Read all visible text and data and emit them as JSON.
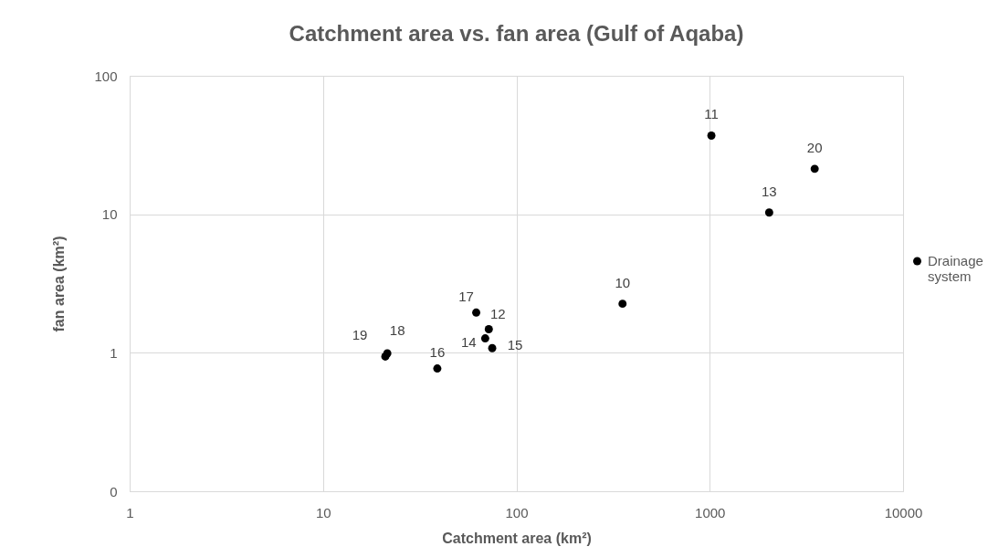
{
  "chart_data": {
    "type": "scatter",
    "title": "Catchment area vs. fan area (Gulf of Aqaba)",
    "xlabel": "Catchment area (km²)",
    "ylabel": "fan area (km²)",
    "x": [
      354,
      1020,
      72,
      2030,
      69,
      75,
      39,
      62,
      21.5,
      21,
      3490
    ],
    "series": [
      {
        "name": "Drainage system",
        "color": "#000000",
        "values": [
          2.26,
          37,
          1.48,
          10.3,
          1.27,
          1.08,
          0.77,
          1.95,
          0.99,
          0.94,
          21.3
        ]
      }
    ],
    "annotations": [
      {
        "text": "10",
        "x": 354,
        "y": 2.26
      },
      {
        "text": "11",
        "x": 1020,
        "y": 37
      },
      {
        "text": "12",
        "x": 72,
        "y": 1.48
      },
      {
        "text": "13",
        "x": 2030,
        "y": 10.3
      },
      {
        "text": "14",
        "x": 69,
        "y": 1.27
      },
      {
        "text": "15",
        "x": 75,
        "y": 1.08
      },
      {
        "text": "16",
        "x": 39,
        "y": 0.77
      },
      {
        "text": "17",
        "x": 62,
        "y": 1.95
      },
      {
        "text": "18",
        "x": 21.5,
        "y": 0.99
      },
      {
        "text": "19",
        "x": 21,
        "y": 0.94
      },
      {
        "text": "20",
        "x": 3490,
        "y": 21.3
      }
    ],
    "log": "xy",
    "xlim": [
      1,
      10000
    ],
    "ylim": [
      0.1,
      100
    ],
    "xticks": [
      1,
      10,
      100,
      1000,
      10000
    ],
    "yticks": [
      {
        "value": 0.1,
        "label": "0"
      },
      1,
      10,
      100
    ],
    "grid": true,
    "legend": "right",
    "marker": "circle"
  }
}
